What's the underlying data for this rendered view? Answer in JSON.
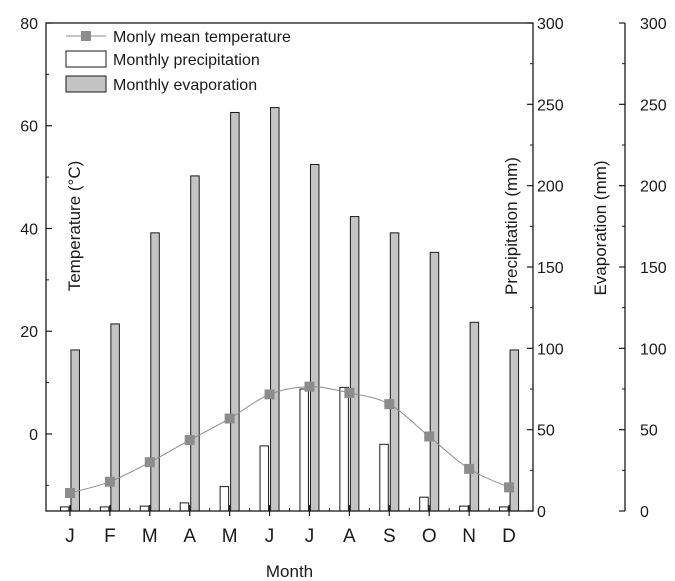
{
  "chart_data": {
    "type": "bar",
    "categories": [
      "J",
      "F",
      "M",
      "A",
      "M",
      "J",
      "J",
      "A",
      "S",
      "O",
      "N",
      "D"
    ],
    "xlabel": "Month",
    "series": [
      {
        "name": "Monly mean temperature",
        "kind": "line",
        "axis": "temperature",
        "color": "#8c8c8c",
        "values": [
          -11.5,
          -9.3,
          -5.5,
          -1.2,
          3.0,
          7.7,
          9.2,
          8.0,
          5.8,
          -0.5,
          -6.8,
          -10.4
        ]
      },
      {
        "name": "Monthly precipitation",
        "kind": "bar",
        "axis": "precipitation",
        "color": "#ffffff",
        "values": [
          2.5,
          2.5,
          3.0,
          5.0,
          15.0,
          40.0,
          75.0,
          76.0,
          41.0,
          8.5,
          3.0,
          2.5
        ]
      },
      {
        "name": "Monthly evaporation",
        "kind": "bar",
        "axis": "evaporation",
        "color": "#c4c4c4",
        "values": [
          99,
          115,
          171,
          206,
          245,
          248,
          213,
          181,
          171,
          159,
          116,
          99
        ]
      }
    ],
    "axes": {
      "temperature": {
        "label": "Temperature (°C)",
        "ylim": [
          -15,
          80
        ],
        "ticks": [
          0,
          20,
          40,
          60,
          80
        ]
      },
      "precipitation": {
        "label": "Precipitation (mm)",
        "ylim": [
          0,
          300
        ],
        "ticks": [
          0,
          50,
          100,
          150,
          200,
          250,
          300
        ]
      },
      "evaporation": {
        "label": "Evaporation (mm)",
        "ylim": [
          0,
          300
        ],
        "ticks": [
          0,
          50,
          100,
          150,
          200,
          250,
          300
        ]
      }
    },
    "legend": "top-left",
    "grid": false
  }
}
